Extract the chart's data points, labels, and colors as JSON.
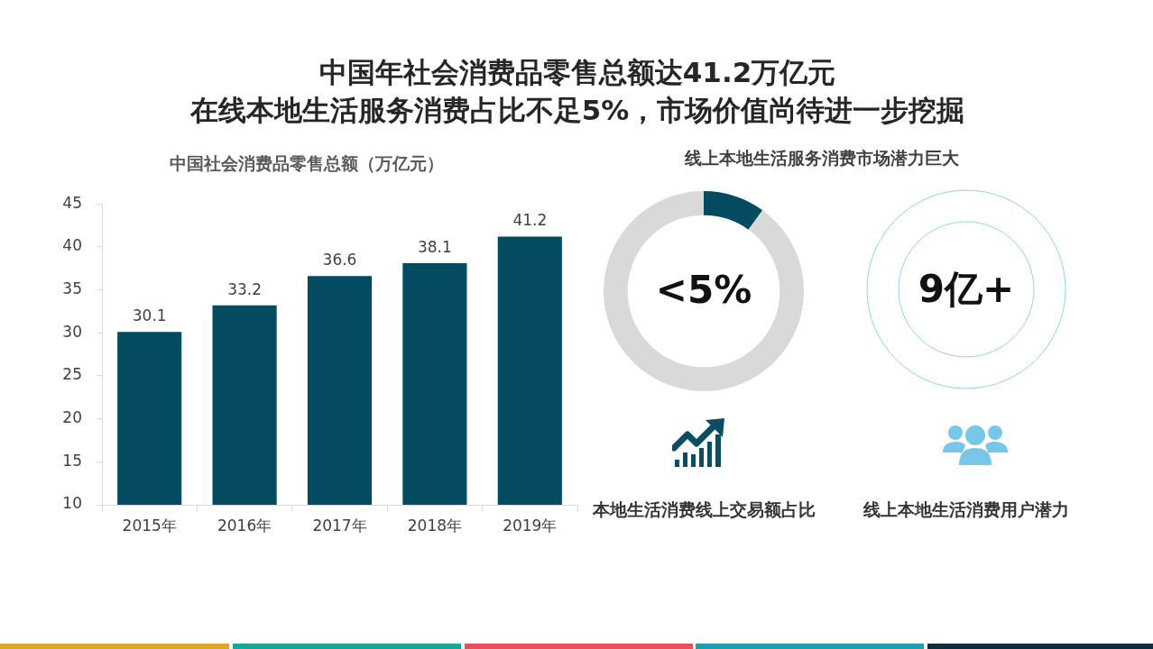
{
  "chart_data": [
    {
      "type": "bar",
      "title": "中国年社会消费品零售总额达41.2万亿元",
      "subtitle": "在线本地生活服务消费占比不足5%，市场价值尚待进一步挖掘",
      "ylabel": "中国社会消费品零售总额（万亿元）",
      "categories": [
        "2015年",
        "2016年",
        "2017年",
        "2018年",
        "2019年"
      ],
      "values": [
        30.1,
        33.2,
        36.6,
        38.1,
        41.2
      ],
      "color": "#024b61",
      "ylim": [
        10,
        45
      ],
      "yticks": [
        10,
        15,
        20,
        25,
        30,
        35,
        40,
        45
      ],
      "data_labels": true
    },
    {
      "type": "donut",
      "title": "线上本地生活服务消费市场潜力巨大",
      "categories": [
        null,
        null
      ],
      "values": [
        10,
        90
      ],
      "colors": [
        "#024b61",
        "#d9d9d9"
      ],
      "annotations": [
        "<5%",
        "本地生活消费线上交易额占比"
      ]
    },
    {
      "type": "other",
      "annotations": [
        "9亿+",
        "线上本地生活消费用户潜力"
      ]
    }
  ]
}
